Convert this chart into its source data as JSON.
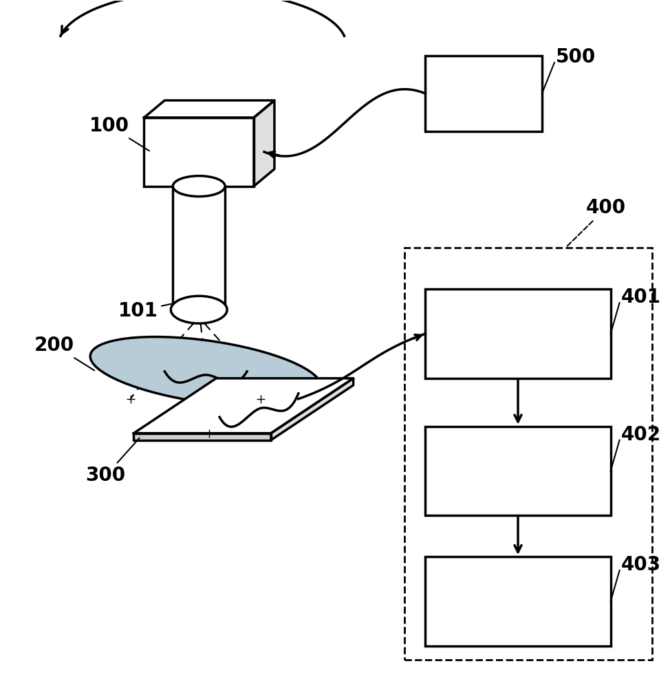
{
  "bg_color": "#ffffff",
  "label_100": "100",
  "label_101": "101",
  "label_200": "200",
  "label_300": "300",
  "label_400": "400",
  "label_401": "401",
  "label_402": "402",
  "label_403": "403",
  "label_500": "500"
}
